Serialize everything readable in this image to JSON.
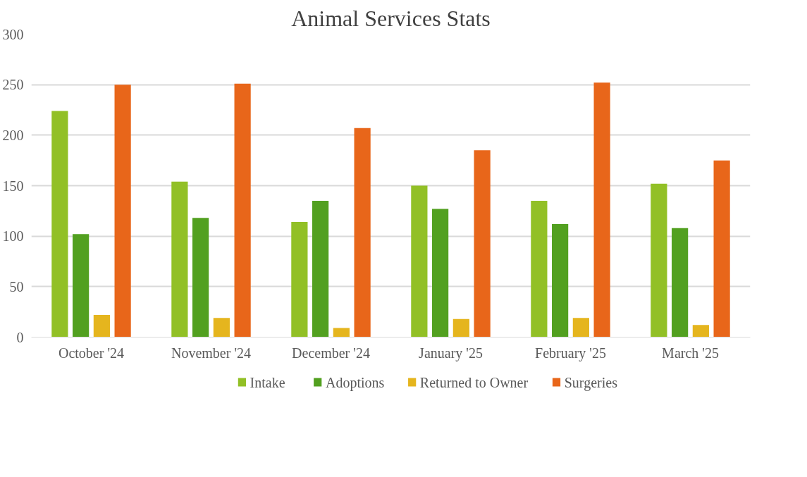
{
  "chart_data": {
    "type": "bar",
    "title": "Animal Services Stats",
    "categories": [
      "October '24",
      "November '24",
      "December '24",
      "January '25",
      "February '25",
      "March '25"
    ],
    "series": [
      {
        "name": "Intake",
        "color": "#92c026",
        "values": [
          224,
          154,
          114,
          150,
          135,
          152
        ]
      },
      {
        "name": "Adoptions",
        "color": "#52a020",
        "values": [
          102,
          118,
          135,
          127,
          112,
          108
        ]
      },
      {
        "name": "Returned to Owner",
        "color": "#e5b51e",
        "values": [
          22,
          19,
          9,
          18,
          19,
          12
        ]
      },
      {
        "name": "Surgeries",
        "color": "#e8661a",
        "values": [
          250,
          251,
          207,
          185,
          252,
          175
        ]
      }
    ],
    "ylim": [
      0,
      300
    ],
    "yticks": [
      0,
      50,
      100,
      150,
      200,
      250,
      300
    ],
    "grid": "y",
    "legend": "bottom"
  }
}
